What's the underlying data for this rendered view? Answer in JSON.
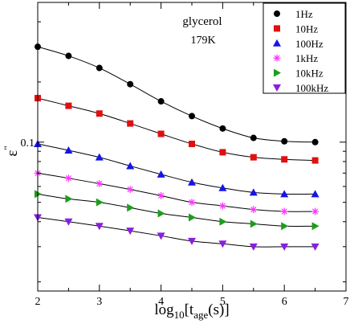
{
  "chart_data": {
    "type": "scatter",
    "annotations": [
      "glycerol",
      "179K"
    ],
    "xlabel": {
      "main": "log",
      "sub1": "10",
      "mid": "[t",
      "sub2": "age",
      "end": "(s)]"
    },
    "ylabel": {
      "main": "ε",
      "sup": "\""
    },
    "xlim": [
      2,
      7
    ],
    "ylim": [
      0.018,
      0.5
    ],
    "yscale": "log",
    "x_ticks": [
      2,
      3,
      4,
      5,
      6,
      7
    ],
    "x_tick_labels": [
      "2",
      "3",
      "4",
      "5",
      "6",
      "7"
    ],
    "y_ticks": [
      0.1
    ],
    "y_tick_labels": [
      "0.1"
    ],
    "legend": {
      "position": "top-right"
    },
    "x": [
      2.0,
      2.5,
      3.0,
      3.5,
      4.0,
      4.5,
      5.0,
      5.5,
      6.0,
      6.5
    ],
    "series": [
      {
        "name": "1Hz",
        "color": "#000000",
        "marker": "circle",
        "values": [
          0.3,
          0.27,
          0.235,
          0.195,
          0.16,
          0.135,
          0.117,
          0.105,
          0.101,
          0.1
        ]
      },
      {
        "name": "10Hz",
        "color": "#e01010",
        "marker": "square",
        "values": [
          0.166,
          0.152,
          0.139,
          0.124,
          0.11,
          0.098,
          0.089,
          0.084,
          0.082,
          0.081
        ]
      },
      {
        "name": "100Hz",
        "color": "#1515e6",
        "marker": "triangle-up",
        "values": [
          0.098,
          0.091,
          0.084,
          0.076,
          0.069,
          0.063,
          0.059,
          0.056,
          0.055,
          0.055
        ]
      },
      {
        "name": "1kHz",
        "color": "#ff33ff",
        "marker": "asterisk",
        "values": [
          0.07,
          0.066,
          0.062,
          0.058,
          0.054,
          0.05,
          0.048,
          0.046,
          0.045,
          0.045
        ]
      },
      {
        "name": "10kHz",
        "color": "#1c9e1c",
        "marker": "triangle-right",
        "values": [
          0.055,
          0.052,
          0.05,
          0.047,
          0.044,
          0.042,
          0.04,
          0.039,
          0.038,
          0.038
        ]
      },
      {
        "name": "100kHz",
        "color": "#8a1ee0",
        "marker": "triangle-down",
        "values": [
          0.042,
          0.04,
          0.038,
          0.036,
          0.034,
          0.032,
          0.031,
          0.03,
          0.03,
          0.03
        ]
      }
    ]
  }
}
